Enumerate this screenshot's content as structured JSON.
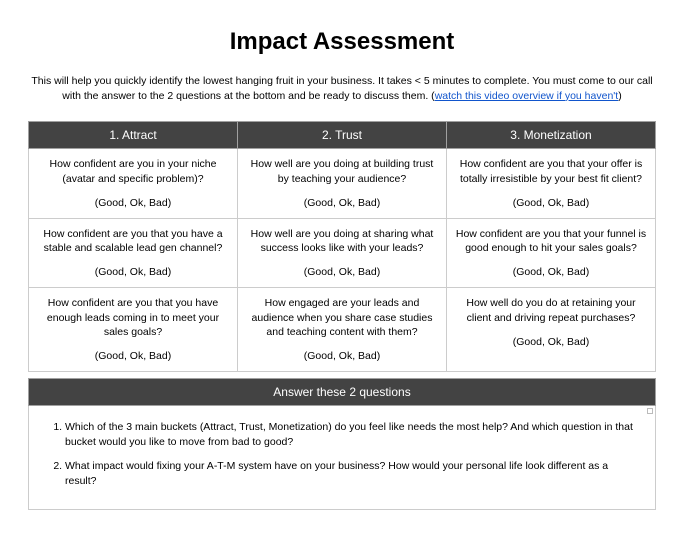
{
  "title": "Impact Assessment",
  "intro_prefix": "This will help you quickly identify the lowest hanging fruit in your business. It takes < 5 minutes to complete. You must come to our call with the answer to the 2 questions at the bottom and be ready to discuss them. (",
  "intro_link": "watch this video overview if you haven't",
  "intro_suffix": ")",
  "scale_label": "(Good, Ok, Bad)",
  "columns": {
    "attract": "1. Attract",
    "trust": "2. Trust",
    "monetization": "3. Monetization"
  },
  "grid": {
    "r1c1": "How confident are you in your niche (avatar and specific problem)?",
    "r1c2": "How well are you doing at building trust by teaching your audience?",
    "r1c3": "How confident are you that your offer is totally irresistible by your best fit client?",
    "r2c1": "How confident are you that you have a stable and scalable lead gen channel?",
    "r2c2": "How well are you doing at sharing what success looks like with your leads?",
    "r2c3": "How confident are you that your funnel is good enough to hit your sales goals?",
    "r3c1": "How confident are you that you have enough leads coming in to meet your sales goals?",
    "r3c2": "How engaged are your leads and audience when you share case studies and teaching content with them?",
    "r3c3": "How well do you do at retaining your client and driving repeat purchases?"
  },
  "questions_header": "Answer these 2 questions",
  "questions": {
    "q1": "Which of the 3 main buckets (Attract, Trust, Monetization) do you feel like needs the most help? And which question in that bucket would you like to move from bad to good?",
    "q2": "What impact would fixing your A-T-M system have on your business? How would your personal life look different as a result?"
  }
}
